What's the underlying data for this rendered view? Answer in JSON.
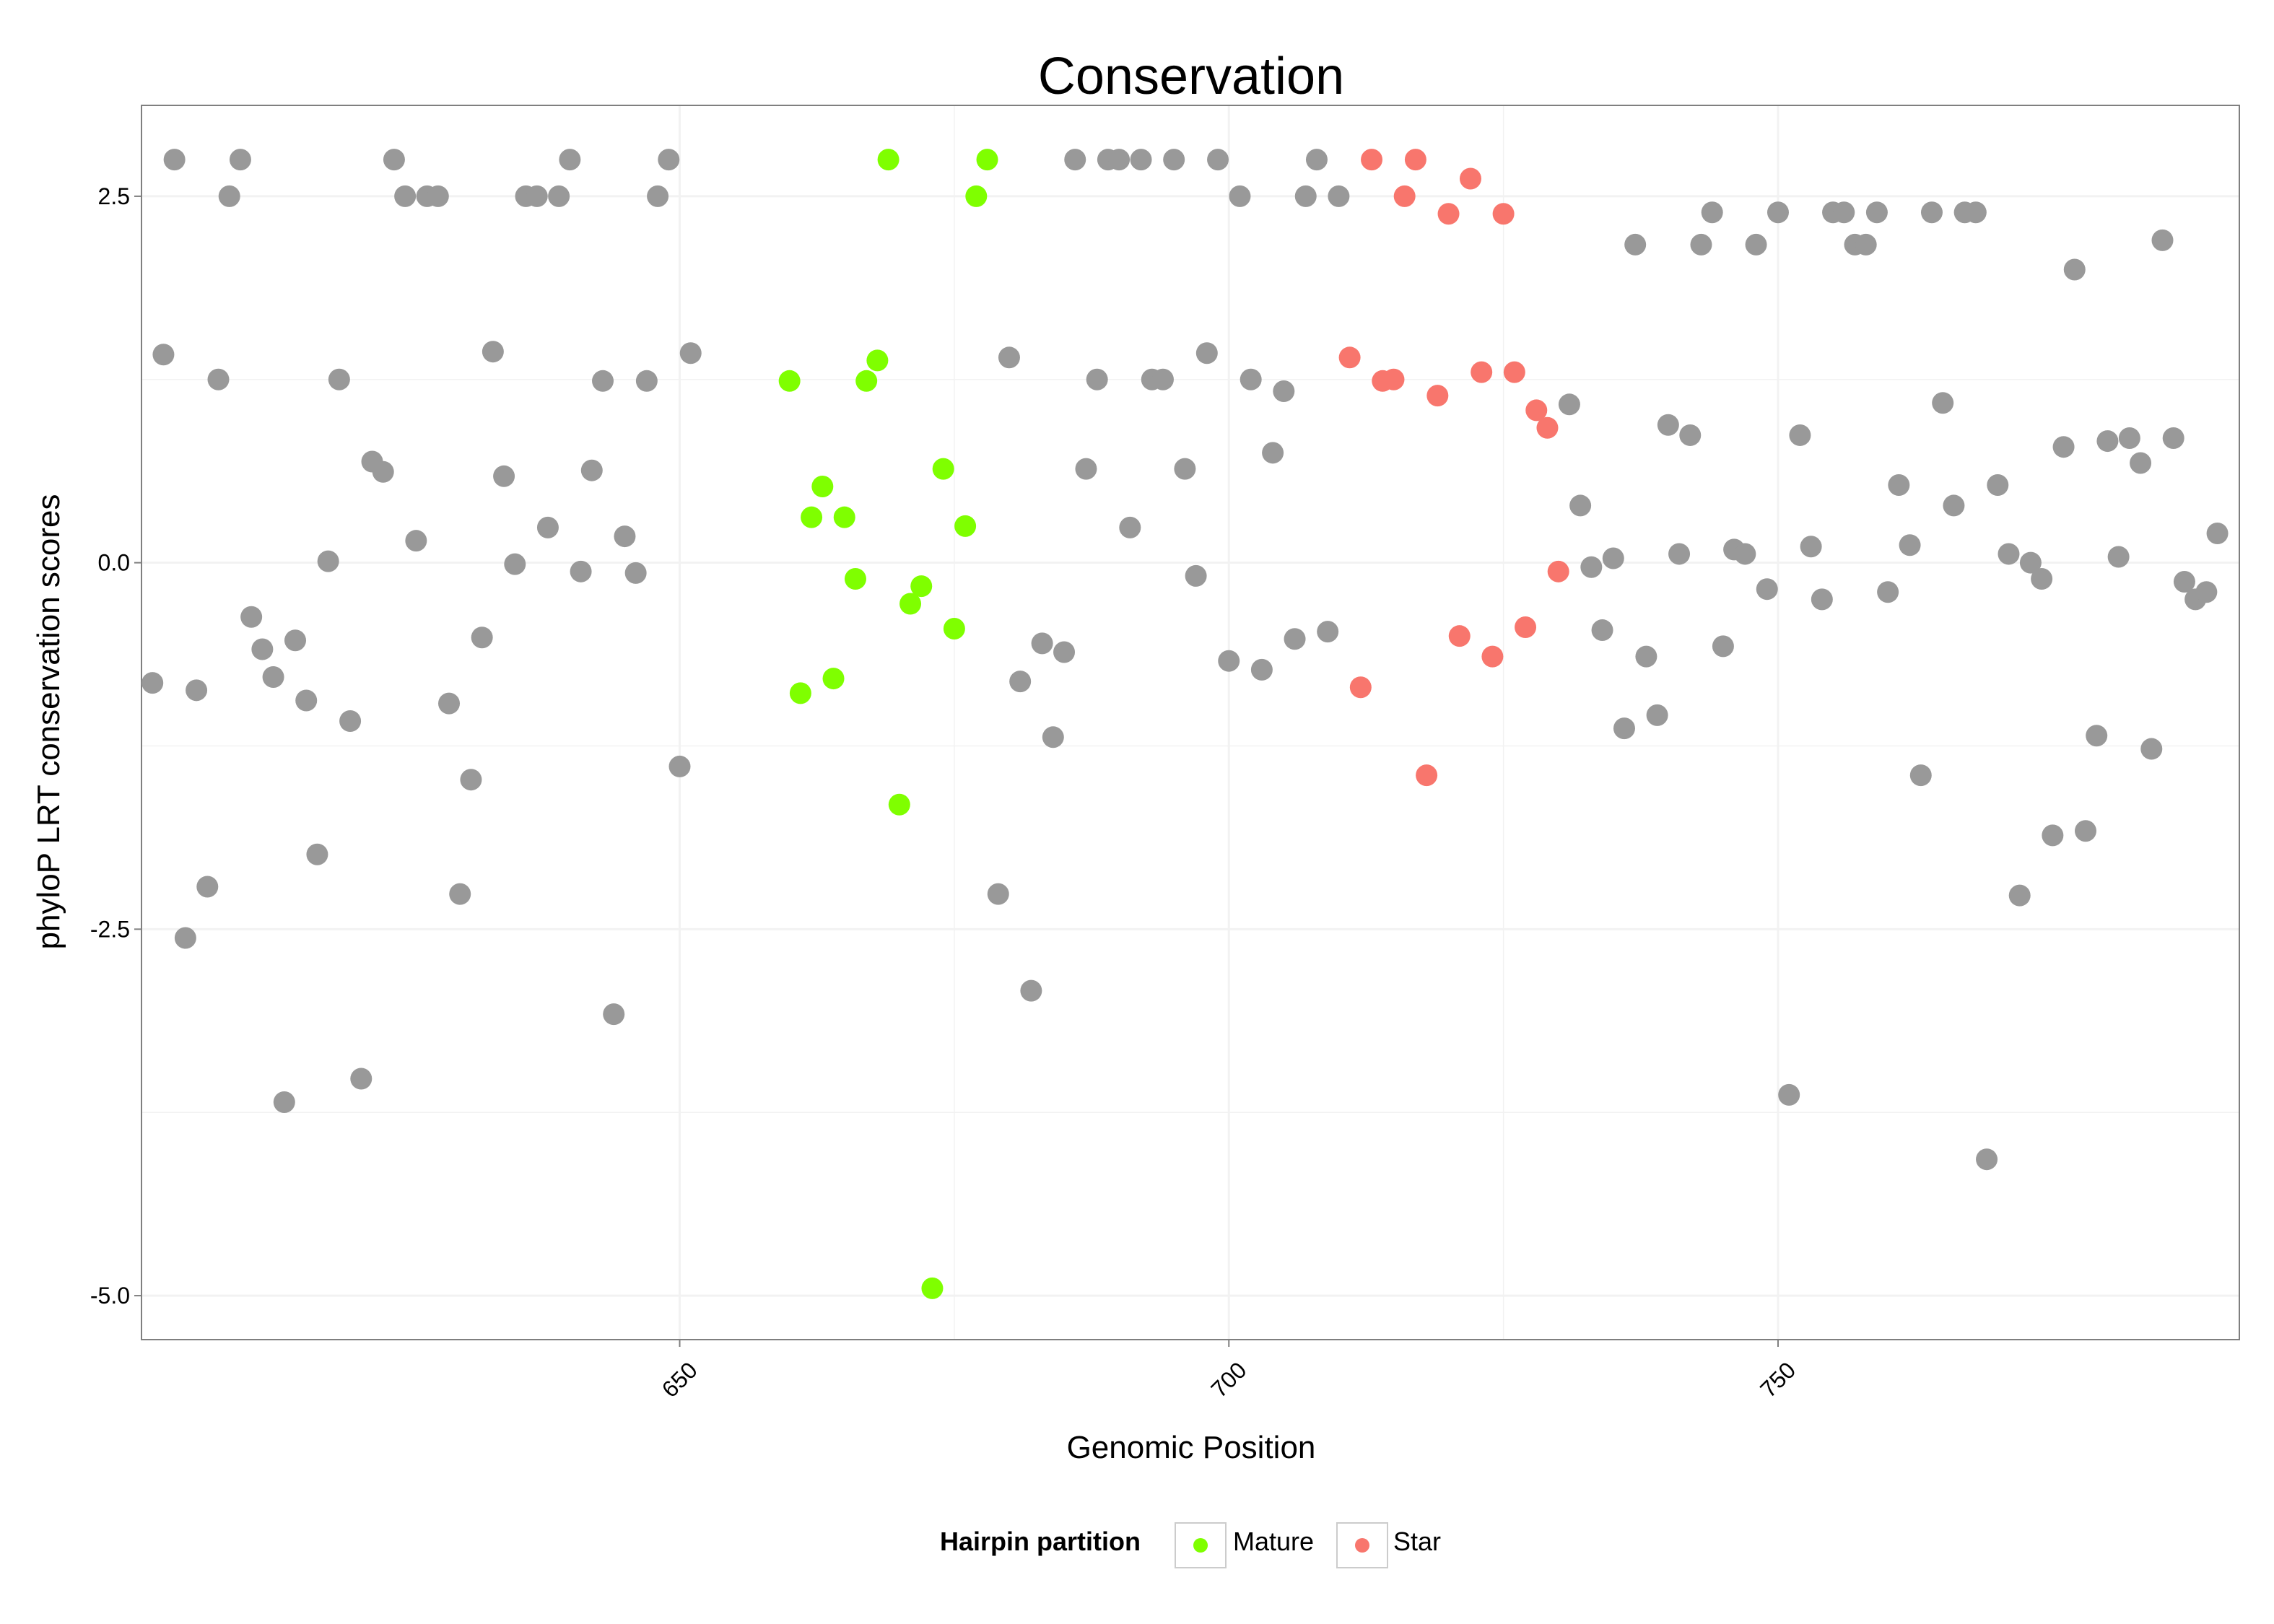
{
  "chart_data": {
    "type": "scatter",
    "title": "Conservation",
    "xlabel": "Genomic Position",
    "ylabel": "phyloP LRT conservation scores",
    "xlim": [
      601,
      792
    ],
    "ylim": [
      -5.3,
      3.12
    ],
    "xticks": [
      650,
      700,
      750
    ],
    "xtick_labels": [
      "650",
      "700",
      "750"
    ],
    "yticks": [
      2.5,
      0,
      -2.5,
      -5
    ],
    "ytick_labels": [
      "2.5",
      "0.0",
      "-2.5",
      "-5.0"
    ],
    "grid": true,
    "legend": {
      "title": "Hairpin partition",
      "position": "bottom",
      "entries": [
        "Mature",
        "Star"
      ]
    },
    "colors": {
      "Other": "#999999",
      "Mature": "#7FFF00",
      "Star": "#F8766D",
      "panel_border": "#7F7F7F",
      "grid": "#F2F2F2"
    },
    "series": [
      {
        "group": "Other",
        "points": [
          [
            602,
            -0.82
          ],
          [
            603,
            1.42
          ],
          [
            604,
            2.75
          ],
          [
            605,
            -2.56
          ],
          [
            606,
            -0.87
          ],
          [
            607,
            -2.21
          ],
          [
            608,
            1.25
          ],
          [
            609,
            2.5
          ],
          [
            610,
            2.75
          ],
          [
            611,
            -0.37
          ],
          [
            612,
            -0.59
          ],
          [
            613,
            -0.78
          ],
          [
            614,
            -3.68
          ],
          [
            615,
            -0.53
          ],
          [
            616,
            -0.94
          ],
          [
            617,
            -1.99
          ],
          [
            618,
            0.01
          ],
          [
            619,
            1.25
          ],
          [
            620,
            -1.08
          ],
          [
            621,
            -3.52
          ],
          [
            622,
            0.69
          ],
          [
            623,
            0.62
          ],
          [
            624,
            2.75
          ],
          [
            625,
            2.5
          ],
          [
            626,
            0.15
          ],
          [
            627,
            2.5
          ],
          [
            628,
            2.5
          ],
          [
            629,
            -0.96
          ],
          [
            630,
            -2.26
          ],
          [
            631,
            -1.48
          ],
          [
            632,
            -0.51
          ],
          [
            633,
            1.44
          ],
          [
            634,
            0.59
          ],
          [
            635,
            -0.01
          ],
          [
            636,
            2.5
          ],
          [
            637,
            2.5
          ],
          [
            638,
            0.24
          ],
          [
            639,
            2.5
          ],
          [
            640,
            2.75
          ],
          [
            641,
            -0.06
          ],
          [
            642,
            0.63
          ],
          [
            643,
            1.24
          ],
          [
            644,
            -3.08
          ],
          [
            645,
            0.18
          ],
          [
            646,
            -0.07
          ],
          [
            647,
            1.24
          ],
          [
            648,
            2.5
          ],
          [
            649,
            2.75
          ],
          [
            650,
            -1.39
          ],
          [
            651,
            1.43
          ],
          [
            679,
            -2.26
          ],
          [
            680,
            1.4
          ],
          [
            681,
            -0.81
          ],
          [
            682,
            -2.92
          ],
          [
            683,
            -0.55
          ],
          [
            684,
            -1.19
          ],
          [
            685,
            -0.61
          ],
          [
            686,
            2.75
          ],
          [
            687,
            0.64
          ],
          [
            688,
            1.25
          ],
          [
            689,
            2.75
          ],
          [
            690,
            2.75
          ],
          [
            691,
            0.24
          ],
          [
            692,
            2.75
          ],
          [
            693,
            1.25
          ],
          [
            694,
            1.25
          ],
          [
            695,
            2.75
          ],
          [
            696,
            0.64
          ],
          [
            697,
            -0.09
          ],
          [
            698,
            1.43
          ],
          [
            699,
            2.75
          ],
          [
            700,
            -0.67
          ],
          [
            701,
            2.5
          ],
          [
            702,
            1.25
          ],
          [
            703,
            -0.73
          ],
          [
            704,
            0.75
          ],
          [
            705,
            1.17
          ],
          [
            706,
            -0.52
          ],
          [
            707,
            2.5
          ],
          [
            708,
            2.75
          ],
          [
            709,
            -0.47
          ],
          [
            710,
            2.5
          ],
          [
            731,
            1.08
          ],
          [
            732,
            0.39
          ],
          [
            733,
            -0.03
          ],
          [
            734,
            -0.46
          ],
          [
            735,
            0.03
          ],
          [
            736,
            -1.13
          ],
          [
            737,
            2.17
          ],
          [
            738,
            -0.64
          ],
          [
            739,
            -1.04
          ],
          [
            740,
            0.94
          ],
          [
            741,
            0.06
          ],
          [
            742,
            0.87
          ],
          [
            743,
            2.17
          ],
          [
            744,
            2.39
          ],
          [
            745,
            -0.57
          ],
          [
            746,
            0.09
          ],
          [
            747,
            0.06
          ],
          [
            748,
            2.17
          ],
          [
            749,
            -0.18
          ],
          [
            750,
            2.39
          ],
          [
            751,
            -3.63
          ],
          [
            752,
            0.87
          ],
          [
            753,
            0.11
          ],
          [
            754,
            -0.25
          ],
          [
            755,
            2.39
          ],
          [
            756,
            2.39
          ],
          [
            757,
            2.17
          ],
          [
            758,
            2.17
          ],
          [
            759,
            2.39
          ],
          [
            760,
            -0.2
          ],
          [
            761,
            0.53
          ],
          [
            762,
            0.12
          ],
          [
            763,
            -1.45
          ],
          [
            764,
            2.39
          ],
          [
            765,
            1.09
          ],
          [
            766,
            0.39
          ],
          [
            767,
            2.39
          ],
          [
            768,
            2.39
          ],
          [
            769,
            -4.07
          ],
          [
            770,
            0.53
          ],
          [
            771,
            0.06
          ],
          [
            772,
            -2.27
          ],
          [
            773,
            0.0
          ],
          [
            774,
            -0.11
          ],
          [
            775,
            -1.86
          ],
          [
            776,
            0.79
          ],
          [
            777,
            2.0
          ],
          [
            778,
            -1.83
          ],
          [
            779,
            -1.18
          ],
          [
            780,
            0.83
          ],
          [
            781,
            0.04
          ],
          [
            782,
            0.85
          ],
          [
            783,
            0.68
          ],
          [
            784,
            -1.27
          ],
          [
            785,
            2.2
          ],
          [
            786,
            0.85
          ],
          [
            787,
            -0.13
          ],
          [
            788,
            -0.25
          ],
          [
            789,
            -0.2
          ],
          [
            790,
            0.2
          ]
        ]
      },
      {
        "group": "Mature",
        "name": "Mature",
        "points": [
          [
            660,
            1.24
          ],
          [
            661,
            -0.89
          ],
          [
            662,
            0.31
          ],
          [
            663,
            0.52
          ],
          [
            664,
            -0.79
          ],
          [
            665,
            0.31
          ],
          [
            666,
            -0.11
          ],
          [
            667,
            1.24
          ],
          [
            668,
            1.38
          ],
          [
            669,
            2.75
          ],
          [
            670,
            -1.65
          ],
          [
            671,
            -0.28
          ],
          [
            672,
            -0.16
          ],
          [
            673,
            -4.95
          ],
          [
            674,
            0.64
          ],
          [
            675,
            -0.45
          ],
          [
            676,
            0.25
          ],
          [
            677,
            2.5
          ],
          [
            678,
            2.75
          ]
        ]
      },
      {
        "group": "Star",
        "name": "Star",
        "points": [
          [
            711,
            1.4
          ],
          [
            712,
            -0.85
          ],
          [
            713,
            2.75
          ],
          [
            714,
            1.24
          ],
          [
            715,
            1.25
          ],
          [
            716,
            2.5
          ],
          [
            717,
            2.75
          ],
          [
            718,
            -1.45
          ],
          [
            719,
            1.14
          ],
          [
            720,
            2.38
          ],
          [
            721,
            -0.5
          ],
          [
            722,
            2.62
          ],
          [
            723,
            1.3
          ],
          [
            724,
            -0.64
          ],
          [
            725,
            2.38
          ],
          [
            726,
            1.3
          ],
          [
            727,
            -0.44
          ],
          [
            728,
            1.04
          ],
          [
            729,
            0.92
          ],
          [
            730,
            -0.06
          ]
        ]
      }
    ]
  }
}
